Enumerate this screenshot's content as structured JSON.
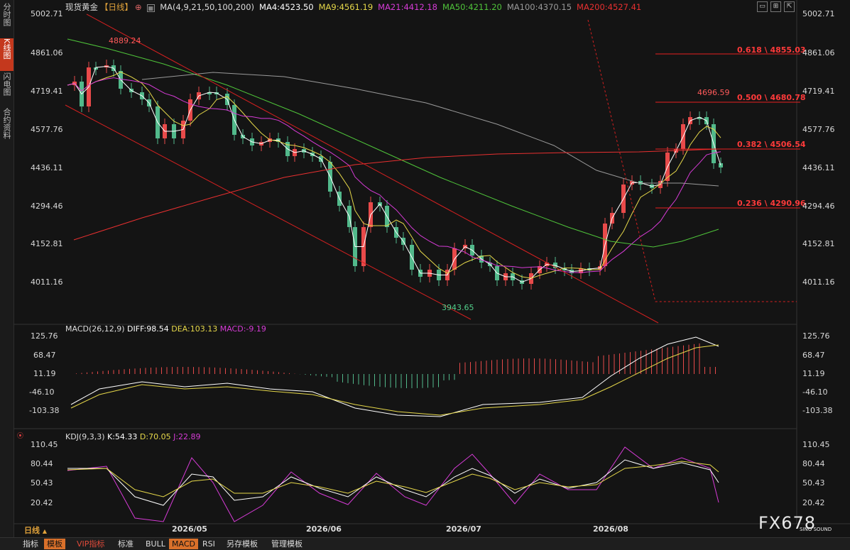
{
  "sidebar": {
    "tabs": [
      "分时图",
      "K线图",
      "闪电图",
      "合约资料"
    ]
  },
  "header": {
    "symbol": "现货黄金",
    "period": "【日线】",
    "ma_params": "MA(4,9,21,50,100,200)",
    "ma4": "MA4:4523.50",
    "ma9": "MA9:4561.19",
    "ma21": "MA21:4412.18",
    "ma50": "MA50:4211.20",
    "ma100": "MA100:4370.15",
    "ma200": "MA200:4527.41"
  },
  "colors": {
    "up": "#e84a4a",
    "down": "#52b98b",
    "ma4": "#ffffff",
    "ma9": "#e6d84a",
    "ma21": "#d63bd6",
    "ma50": "#4fc43a",
    "ma100": "#9a9a9a",
    "ma200": "#e83030",
    "fib": "#e82020"
  },
  "price_axis": [
    "5002.71",
    "4861.06",
    "4719.41",
    "4577.76",
    "4436.11",
    "4294.46",
    "4152.81",
    "4011.16"
  ],
  "annotations": {
    "high1": "4889.24",
    "low1": "3943.65",
    "high2": "4696.59"
  },
  "fib_levels": [
    "0.618 \\ 4855.03",
    "0.500 \\ 4680.78",
    "0.382 \\ 4506.54",
    "0.236 \\ 4290.96"
  ],
  "macd": {
    "title": "MACD(26,12,9)",
    "diff": "DIFF:98.54",
    "dea": "DEA:103.13",
    "macd": "MACD:-9.19",
    "axis": [
      "125.76",
      "68.47",
      "11.19",
      "-46.10",
      "-103.38"
    ]
  },
  "kdj": {
    "title": "KDJ(9,3,3)",
    "k": "K:54.33",
    "d": "D:70.05",
    "j": "J:22.89",
    "axis": [
      "110.45",
      "80.44",
      "50.43",
      "20.42"
    ]
  },
  "dates": [
    "2026/05",
    "2026/06",
    "2026/07",
    "2026/08"
  ],
  "period_label": "日线",
  "bottom_tabs": [
    "指标",
    "模板",
    "VIP指标",
    "标准",
    "BULL",
    "MACD",
    "RSI",
    "另存模板",
    "管理模板"
  ],
  "watermark": {
    "brand": "FX678",
    "sub": "SINO SOUND"
  }
}
